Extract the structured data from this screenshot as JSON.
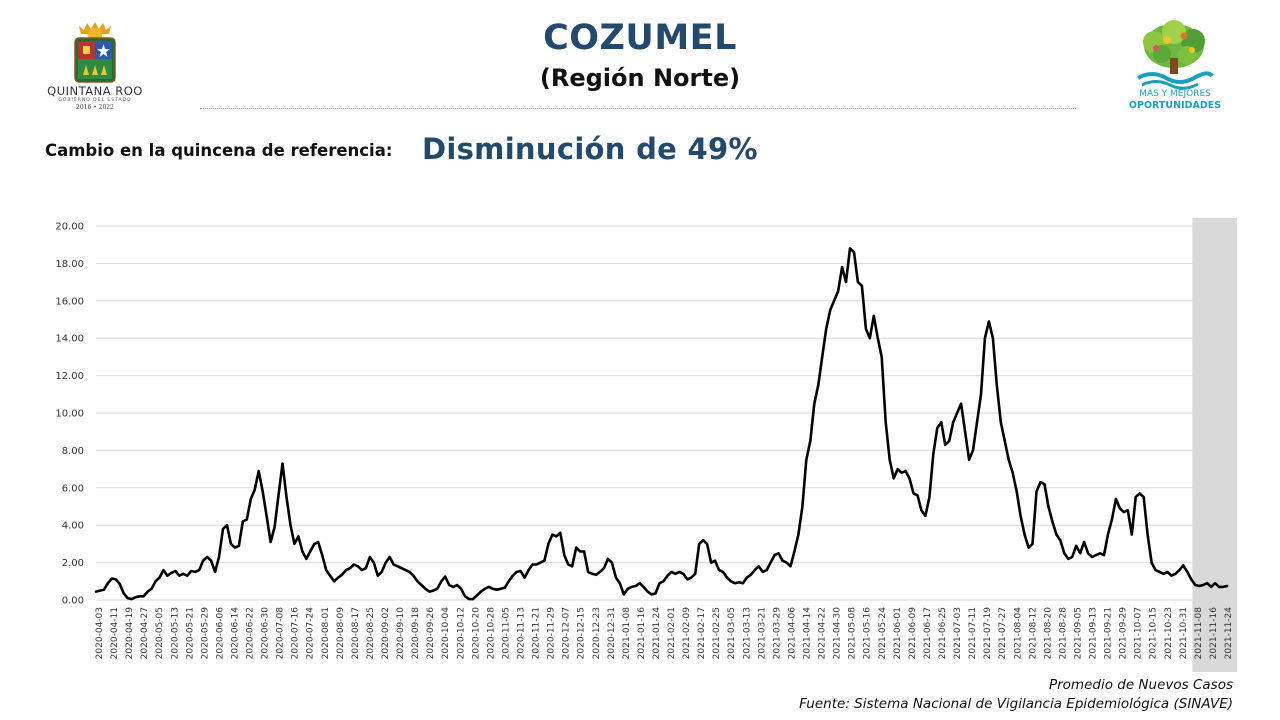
{
  "header": {
    "title": "COZUMEL",
    "subtitle": "(Región Norte)"
  },
  "logo_left": {
    "brand": "QUINTANA ROO",
    "sub": "GOBIERNO DEL ESTADO",
    "years": "2016 • 2022",
    "icon": "state-coat-of-arms-icon"
  },
  "logo_right": {
    "line1": "MÁS Y MEJORES",
    "line2": "OPORTUNIDADES",
    "icon": "tree-logo-icon"
  },
  "change": {
    "label": "Cambio en la quincena de referencia:",
    "value": "Disminución de 49%"
  },
  "colors": {
    "title": "#23496d",
    "line": "#000000",
    "shade": "#d9d9d9",
    "grid": "#d9d9d9",
    "logo_accent": "#1a9fbf"
  },
  "chart_data": {
    "type": "line",
    "series": [
      {
        "values": [
          0.45,
          0.5,
          0.55,
          0.9,
          1.15,
          1.1,
          0.85,
          0.35,
          0.1,
          0.05,
          0.15,
          0.2,
          0.2,
          0.45,
          0.6,
          1.0,
          1.2,
          1.6,
          1.3,
          1.45,
          1.55,
          1.3,
          1.4,
          1.3,
          1.55,
          1.5,
          1.6,
          2.1,
          2.3,
          2.1,
          1.5,
          2.3,
          3.8,
          4.0,
          3.0,
          2.8,
          2.9,
          4.2,
          4.3,
          5.4,
          5.9,
          6.9,
          5.8,
          4.5,
          3.1,
          3.9,
          5.6,
          7.3,
          5.5,
          4.0,
          3.0,
          3.4,
          2.6,
          2.2,
          2.6,
          3.0,
          3.1,
          2.4,
          1.6,
          1.3,
          1.0,
          1.2,
          1.35,
          1.6,
          1.7,
          1.9,
          1.8,
          1.6,
          1.7,
          2.3,
          2.0,
          1.3,
          1.5,
          2.0,
          2.3,
          1.9,
          1.8,
          1.7,
          1.6,
          1.5,
          1.3,
          1.0,
          0.8,
          0.6,
          0.45,
          0.5,
          0.6,
          1.0,
          1.25,
          0.8,
          0.7,
          0.8,
          0.6,
          0.2,
          0.05,
          0.05,
          0.25,
          0.45,
          0.6,
          0.7,
          0.6,
          0.55,
          0.6,
          0.65,
          1.0,
          1.3,
          1.5,
          1.55,
          1.2,
          1.6,
          1.9,
          1.9,
          2.0,
          2.1,
          3.0,
          3.5,
          3.4,
          3.6,
          2.4,
          1.9,
          1.8,
          2.8,
          2.6,
          2.6,
          1.5,
          1.4,
          1.35,
          1.5,
          1.7,
          2.2,
          2.0,
          1.2,
          0.9,
          0.3,
          0.6,
          0.7,
          0.75,
          0.9,
          0.7,
          0.45,
          0.3,
          0.35,
          0.9,
          1.0,
          1.3,
          1.5,
          1.4,
          1.5,
          1.4,
          1.1,
          1.2,
          1.4,
          3.0,
          3.2,
          3.0,
          2.0,
          2.1,
          1.6,
          1.5,
          1.2,
          1.0,
          0.9,
          0.95,
          0.9,
          1.2,
          1.35,
          1.6,
          1.8,
          1.5,
          1.6,
          2.0,
          2.4,
          2.5,
          2.1,
          2.0,
          1.8,
          2.6,
          3.5,
          5.0,
          7.5,
          8.5,
          10.5,
          11.5,
          13.0,
          14.5,
          15.5,
          16.0,
          16.5,
          17.8,
          17.0,
          18.8,
          18.6,
          17.0,
          16.8,
          14.5,
          14.0,
          15.2,
          14.0,
          13.0,
          9.5,
          7.5,
          6.5,
          7.0,
          6.8,
          6.9,
          6.5,
          5.7,
          5.6,
          4.8,
          4.5,
          5.5,
          7.8,
          9.2,
          9.5,
          8.3,
          8.5,
          9.5,
          10.0,
          10.5,
          9.0,
          7.5,
          8.0,
          9.5,
          11.0,
          14.0,
          14.9,
          14.0,
          11.5,
          9.5,
          8.5,
          7.5,
          6.8,
          5.8,
          4.5,
          3.5,
          2.8,
          3.0,
          5.8,
          6.3,
          6.2,
          5.0,
          4.2,
          3.5,
          3.2,
          2.5,
          2.2,
          2.3,
          2.9,
          2.5,
          3.1,
          2.5,
          2.3,
          2.4,
          2.5,
          2.4,
          3.5,
          4.3,
          5.4,
          4.9,
          4.7,
          4.8,
          3.5,
          5.5,
          5.7,
          5.5,
          3.5,
          2.0,
          1.6,
          1.5,
          1.4,
          1.5,
          1.3,
          1.4,
          1.6,
          1.85,
          1.5,
          1.1,
          0.8,
          0.75,
          0.8,
          0.9,
          0.7,
          0.9,
          0.7,
          0.7,
          0.75
        ]
      }
    ],
    "x_labels": [
      "2020-04-03",
      "2020-04-11",
      "2020-04-19",
      "2020-04-27",
      "2020-05-05",
      "2020-05-13",
      "2020-05-21",
      "2020-05-29",
      "2020-06-06",
      "2020-06-14",
      "2020-06-22",
      "2020-06-30",
      "2020-07-08",
      "2020-07-16",
      "2020-07-24",
      "2020-08-01",
      "2020-08-09",
      "2020-08-17",
      "2020-08-25",
      "2020-09-02",
      "2020-09-10",
      "2020-09-18",
      "2020-09-26",
      "2020-10-04",
      "2020-10-12",
      "2020-10-20",
      "2020-10-28",
      "2020-11-05",
      "2020-11-13",
      "2020-11-21",
      "2020-11-29",
      "2020-12-07",
      "2020-12-15",
      "2020-12-23",
      "2020-12-31",
      "2021-01-08",
      "2021-01-16",
      "2021-01-24",
      "2021-02-01",
      "2021-02-09",
      "2021-02-17",
      "2021-02-25",
      "2021-03-05",
      "2021-03-13",
      "2021-03-21",
      "2021-03-29",
      "2021-04-06",
      "2021-04-14",
      "2021-04-22",
      "2021-04-30",
      "2021-05-08",
      "2021-05-16",
      "2021-05-24",
      "2021-06-01",
      "2021-06-09",
      "2021-06-17",
      "2021-06-25",
      "2021-07-03",
      "2021-07-11",
      "2021-07-19",
      "2021-07-27",
      "2021-08-04",
      "2021-08-12",
      "2021-08-20",
      "2021-08-28",
      "2021-09-05",
      "2021-09-13",
      "2021-09-21",
      "2021-09-29",
      "2021-10-07",
      "2021-10-15",
      "2021-10-23",
      "2021-10-31",
      "2021-11-08",
      "2021-11-16",
      "2021-11-24"
    ],
    "y_ticks": [
      "0.00",
      "2.00",
      "4.00",
      "6.00",
      "8.00",
      "10.00",
      "12.00",
      "14.00",
      "16.00",
      "18.00",
      "20.00"
    ],
    "ylim": [
      0,
      20
    ],
    "shaded_from_label": "2021-11-08",
    "grid": "horizontal",
    "legend": "Promedio de Nuevos Casos",
    "source": "Fuente: Sistema Nacional de Vigilancia Epidemiológica (SINAVE)"
  }
}
